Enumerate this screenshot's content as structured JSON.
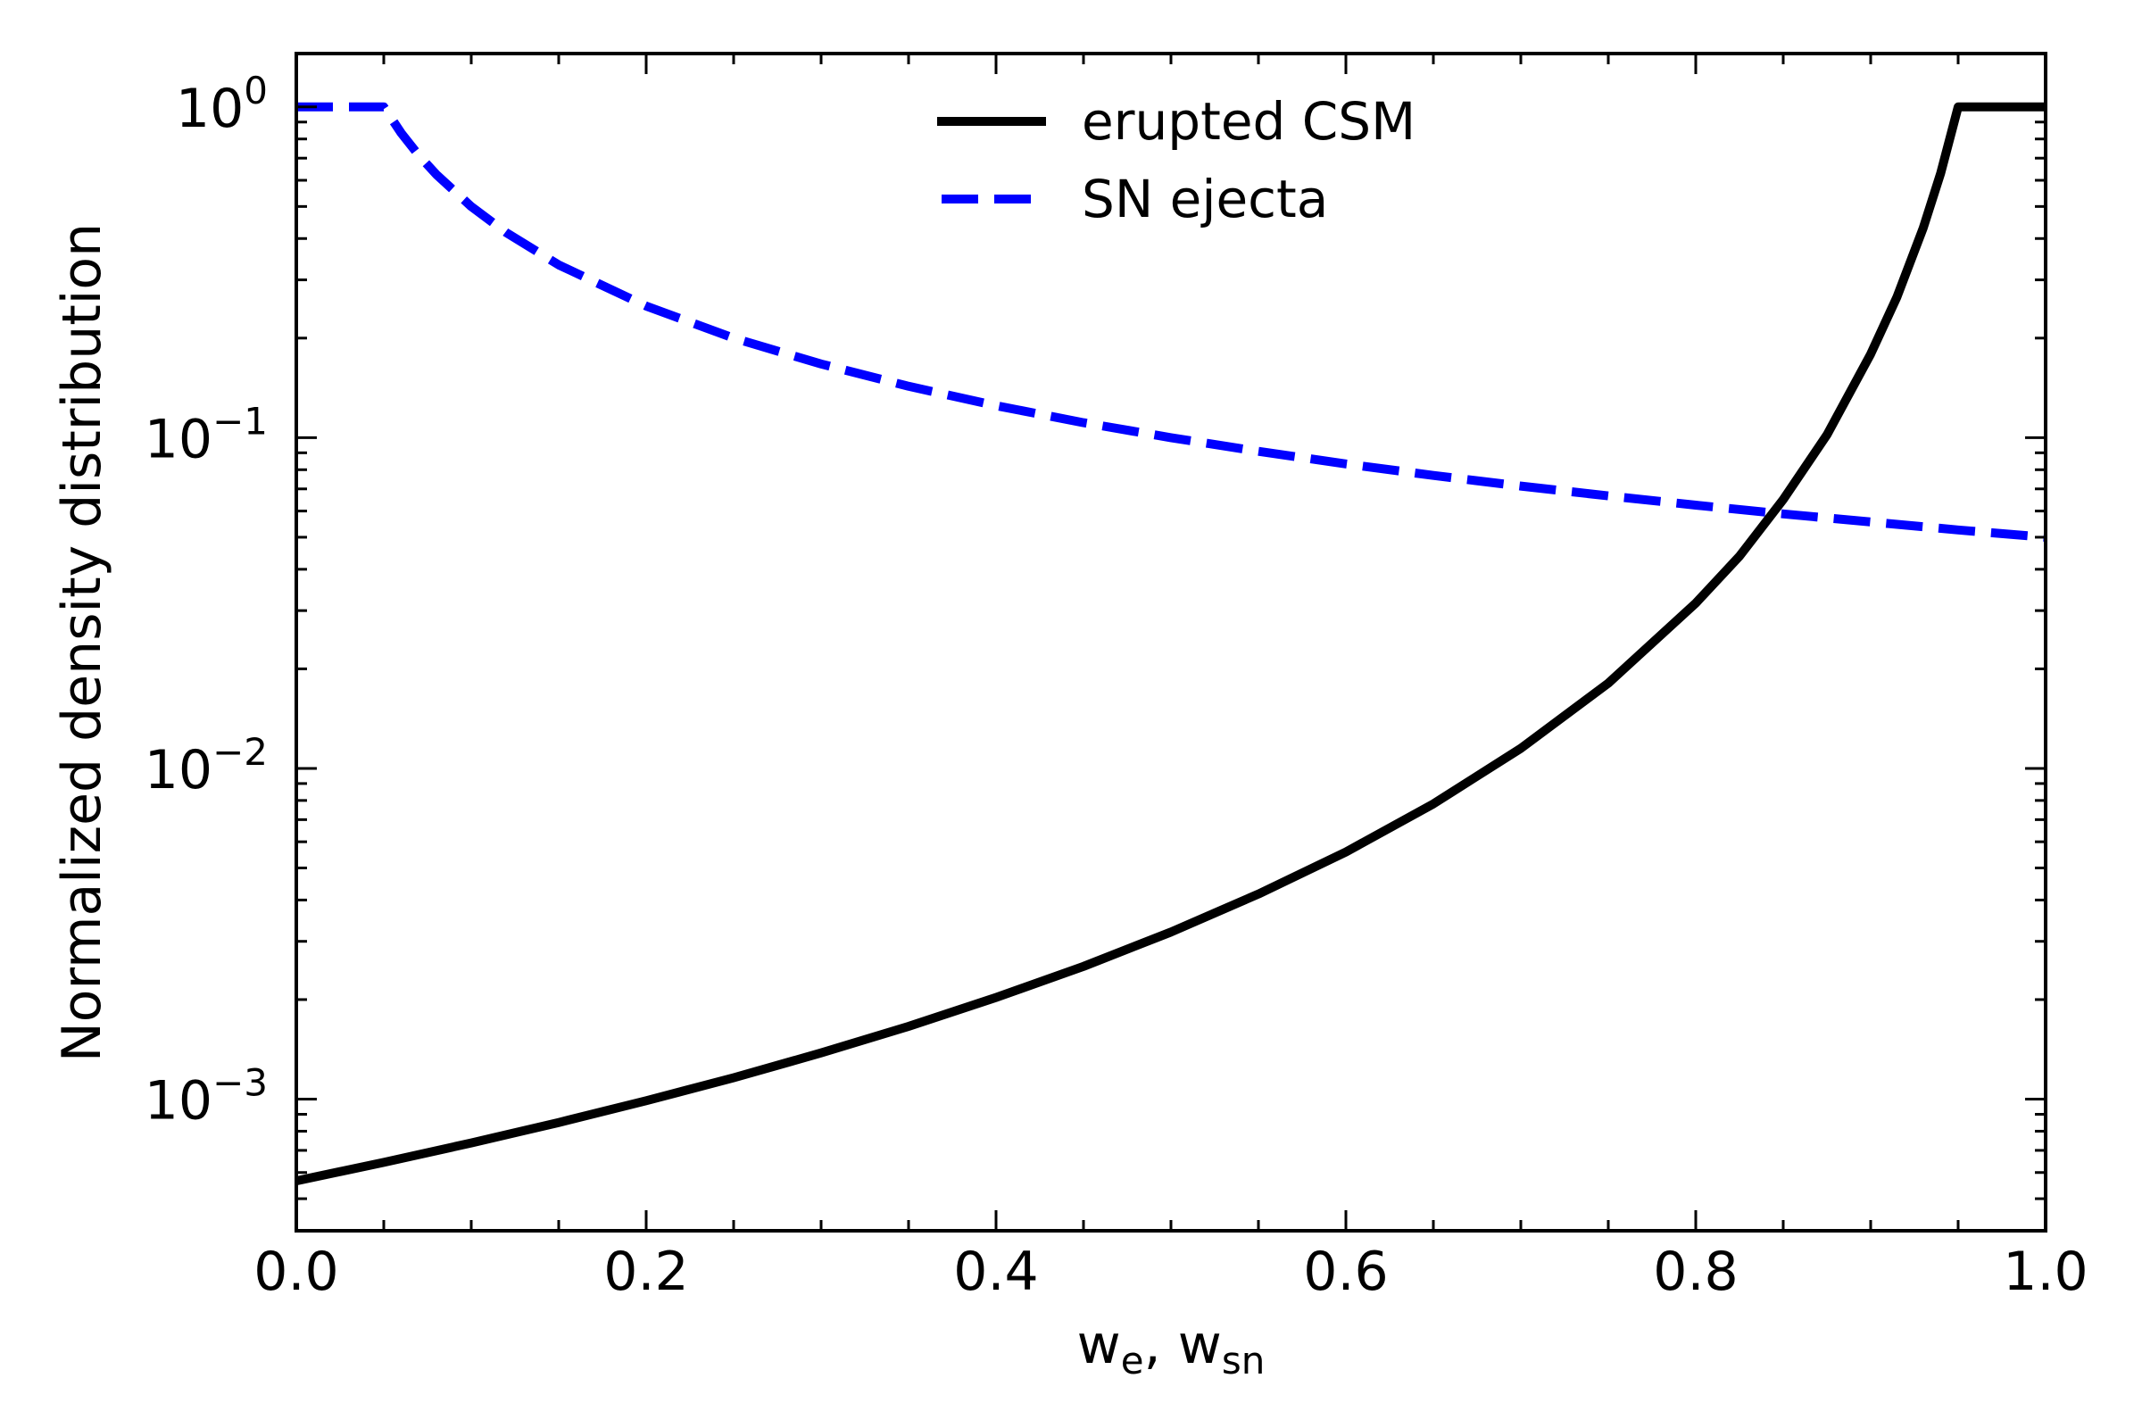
{
  "chart_data": {
    "type": "line",
    "title": "",
    "xlabel": "w_e, w_sn",
    "xlabel_parts": {
      "w1": "w",
      "sub1": "e",
      "sep": ", ",
      "w2": "w",
      "sub2": "sn"
    },
    "ylabel": "Normalized density distribution",
    "xscale": "linear",
    "yscale": "log",
    "xlim": [
      0.0,
      1.0
    ],
    "ylim": [
      0.0004,
      1.45
    ],
    "grid": false,
    "x_ticks": [
      {
        "value": 0.0,
        "label": "0.0"
      },
      {
        "value": 0.2,
        "label": "0.2"
      },
      {
        "value": 0.4,
        "label": "0.4"
      },
      {
        "value": 0.6,
        "label": "0.6"
      },
      {
        "value": 0.8,
        "label": "0.8"
      },
      {
        "value": 1.0,
        "label": "1.0"
      }
    ],
    "y_ticks": [
      {
        "value": 1,
        "base": "10",
        "exp": "0"
      },
      {
        "value": 0.1,
        "base": "10",
        "exp": "−1"
      },
      {
        "value": 0.01,
        "base": "10",
        "exp": "−2"
      },
      {
        "value": 0.001,
        "base": "10",
        "exp": "−3"
      }
    ],
    "legend": {
      "position": "top-center"
    },
    "series": [
      {
        "name": "erupted CSM",
        "color": "#000000",
        "style": "solid",
        "x": [
          0.0,
          0.05,
          0.1,
          0.15,
          0.2,
          0.25,
          0.3,
          0.35,
          0.4,
          0.45,
          0.5,
          0.55,
          0.6,
          0.65,
          0.7,
          0.75,
          0.8,
          0.825,
          0.85,
          0.875,
          0.9,
          0.915,
          0.93,
          0.94,
          0.95,
          1.0
        ],
        "y": [
          0.000566,
          0.000644,
          0.000737,
          0.00085,
          0.000989,
          0.00116,
          0.00138,
          0.00166,
          0.00203,
          0.00252,
          0.0032,
          0.00417,
          0.00559,
          0.00781,
          0.0115,
          0.0181,
          0.0316,
          0.0438,
          0.065,
          0.102,
          0.179,
          0.266,
          0.43,
          0.63,
          1.0,
          1.0
        ]
      },
      {
        "name": "SN ejecta",
        "color": "#0000ff",
        "style": "dashed",
        "x": [
          0.0,
          0.05,
          0.06,
          0.07,
          0.08,
          0.1,
          0.12,
          0.15,
          0.2,
          0.25,
          0.3,
          0.35,
          0.4,
          0.45,
          0.5,
          0.55,
          0.6,
          0.65,
          0.7,
          0.75,
          0.8,
          0.85,
          0.9,
          0.95,
          1.0
        ],
        "y": [
          1.0,
          1.0,
          0.833,
          0.714,
          0.625,
          0.5,
          0.417,
          0.333,
          0.25,
          0.2,
          0.167,
          0.143,
          0.125,
          0.111,
          0.1,
          0.0909,
          0.0833,
          0.0769,
          0.0714,
          0.0667,
          0.0625,
          0.0588,
          0.0556,
          0.0526,
          0.05
        ]
      }
    ]
  }
}
